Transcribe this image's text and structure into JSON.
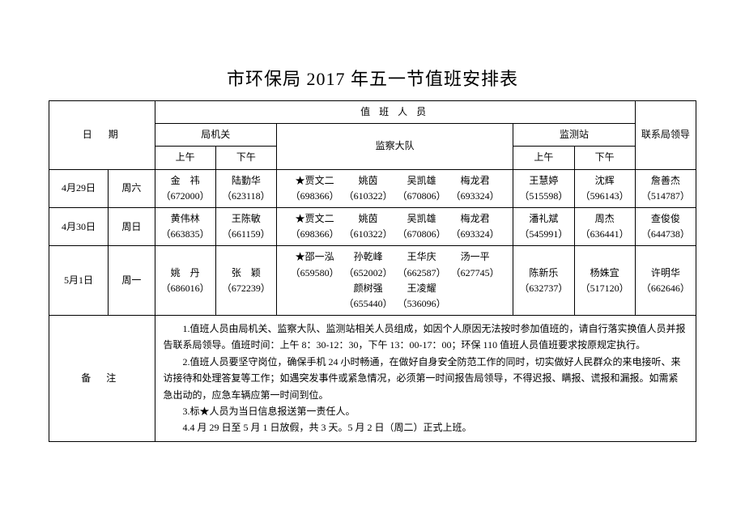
{
  "title": "市环保局 2017 年五一节值班安排表",
  "headers": {
    "date": "日　期",
    "staff": "值 班 人 员",
    "bureau": "局机关",
    "am": "上午",
    "pm": "下午",
    "squad": "监察大队",
    "station": "监测站",
    "leader": "联系局领导"
  },
  "rows": [
    {
      "date": "4月29日",
      "weekday": "周六",
      "bureau_am": {
        "name": "金　祎",
        "phone": "（672000）"
      },
      "bureau_pm": {
        "name": "陆勤华",
        "phone": "（623118）"
      },
      "squad": [
        {
          "name": "★贾文二",
          "phone": "（698366）"
        },
        {
          "name": "姚茵",
          "phone": "（610322）"
        },
        {
          "name": "吴凯雄",
          "phone": "（670806）"
        },
        {
          "name": "梅龙君",
          "phone": "（693324）"
        }
      ],
      "station_am": {
        "name": "王慧婷",
        "phone": "（515598）"
      },
      "station_pm": {
        "name": "沈辉",
        "phone": "（596143）"
      },
      "leader": {
        "name": "詹善杰",
        "phone": "（514787）"
      }
    },
    {
      "date": "4月30日",
      "weekday": "周日",
      "bureau_am": {
        "name": "黄伟林",
        "phone": "（663835）"
      },
      "bureau_pm": {
        "name": "王陈敏",
        "phone": "（661159）"
      },
      "squad": [
        {
          "name": "★贾文二",
          "phone": "（698366）"
        },
        {
          "name": "姚茵",
          "phone": "（610322）"
        },
        {
          "name": "吴凯雄",
          "phone": "（670806）"
        },
        {
          "name": "梅龙君",
          "phone": "（693324）"
        }
      ],
      "station_am": {
        "name": "潘礼斌",
        "phone": "（545991）"
      },
      "station_pm": {
        "name": "周杰",
        "phone": "（636441）"
      },
      "leader": {
        "name": "查俊俊",
        "phone": "（644738）"
      }
    },
    {
      "date": "5月1日",
      "weekday": "周一",
      "bureau_am": {
        "name": "姚　丹",
        "phone": "（686016）"
      },
      "bureau_pm": {
        "name": "张　颖",
        "phone": "（672239）"
      },
      "squad": [
        {
          "name": "★邵一泓",
          "phone": "（659580）"
        },
        {
          "name": "孙乾峰",
          "phone": "（652002）"
        },
        {
          "name": "王华庆",
          "phone": "（662587）"
        },
        {
          "name": "汤一平",
          "phone": "（627745）"
        },
        {
          "name": "颜树强",
          "phone": "（655440）"
        },
        {
          "name": "王凌耀",
          "phone": "（536096）"
        }
      ],
      "station_am": {
        "name": "陈新乐",
        "phone": "（632737）"
      },
      "station_pm": {
        "name": "杨姝宜",
        "phone": "（517120）"
      },
      "leader": {
        "name": "许明华",
        "phone": "（662646）"
      }
    }
  ],
  "notes": {
    "label": "备  注",
    "lines": [
      "1.值班人员由局机关、监察大队、监测站相关人员组成，如因个人原因无法按时参加值班的，请自行落实换值人员并报告联系局领导。值班时间：上午 8：30-12：30，下午 13：00-17：00；环保 110 值班人员值班要求按原规定执行。",
      "2.值班人员要坚守岗位，确保手机 24 小时畅通，在做好自身安全防范工作的同时，切实做好人民群众的来电接听、来访接待和处理答复等工作；如遇突发事件或紧急情况，必须第一时间报告局领导，不得迟报、瞒报、谎报和漏报。如需紧急出动的，应急车辆应第一时间到位。",
      "3.标★人员为当日信息报送第一责任人。",
      "4.4 月 29 日至 5 月 1 日放假，共 3 天。5 月 2 日（周二）正式上班。"
    ]
  },
  "style": {
    "background": "#ffffff",
    "border_color": "#000000",
    "title_fontsize": 22,
    "cell_fontsize": 12
  }
}
